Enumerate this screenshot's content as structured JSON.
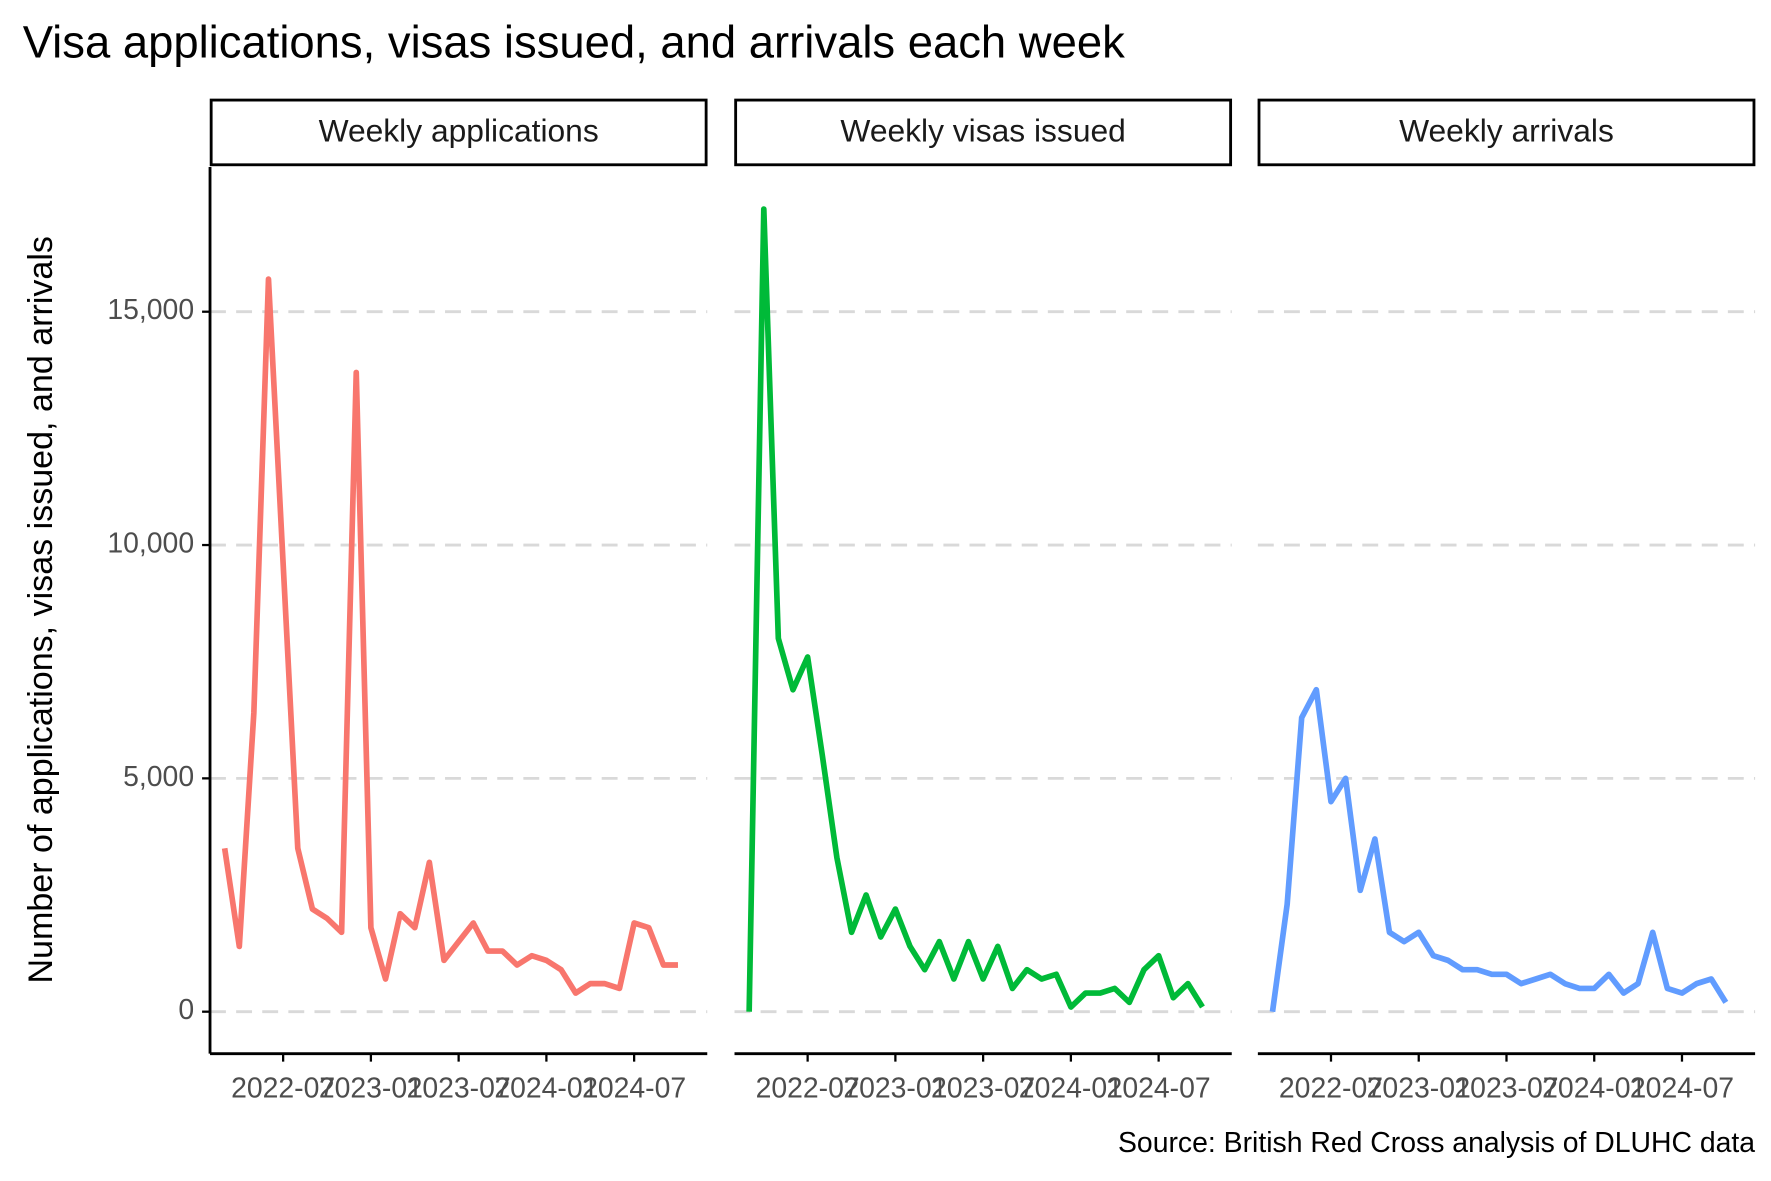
{
  "title": "Visa applications, visas issued, and arrivals each week",
  "y_label": "Number of applications, visas issued, and arrivals",
  "caption": "Source: British Red Cross analysis of DLUHC data",
  "chart_data": [
    {
      "type": "line",
      "x": [
        "2022-03",
        "2022-04",
        "2022-05",
        "2022-06",
        "2022-07",
        "2022-08",
        "2022-09",
        "2022-10",
        "2022-11",
        "2022-12",
        "2023-01",
        "2023-02",
        "2023-03",
        "2023-04",
        "2023-05",
        "2023-06",
        "2023-07",
        "2023-08",
        "2023-09",
        "2023-10",
        "2023-11",
        "2023-12",
        "2024-01",
        "2024-02",
        "2024-03",
        "2024-04",
        "2024-05",
        "2024-06",
        "2024-07",
        "2024-08",
        "2024-09",
        "2024-10"
      ],
      "series": [
        {
          "name": "Weekly applications",
          "color": "#f8766d",
          "values": [
            3500,
            1400,
            6400,
            15700,
            9600,
            3500,
            2200,
            2000,
            1700,
            13700,
            1800,
            700,
            2100,
            1800,
            3200,
            1100,
            1500,
            1900,
            1300,
            1300,
            1000,
            1200,
            1100,
            900,
            400,
            600,
            600,
            500,
            1900,
            1800,
            1000,
            1000
          ]
        }
      ],
      "xlim": [
        "2022-02",
        "2024-12"
      ],
      "xticks": [
        "2022-07",
        "2023-01",
        "2023-07",
        "2024-01",
        "2024-07"
      ],
      "ylim": [
        -900,
        18100
      ],
      "yticks": [
        0,
        {
          "value": 5000,
          "label": "5,000"
        },
        {
          "value": 10000,
          "label": "10,000"
        },
        {
          "value": 15000,
          "label": "15,000"
        }
      ],
      "grid": true
    },
    {
      "type": "line",
      "x": [
        "2022-03",
        "2022-04",
        "2022-05",
        "2022-06",
        "2022-07",
        "2022-08",
        "2022-09",
        "2022-10",
        "2022-11",
        "2022-12",
        "2023-01",
        "2023-02",
        "2023-03",
        "2023-04",
        "2023-05",
        "2023-06",
        "2023-07",
        "2023-08",
        "2023-09",
        "2023-10",
        "2023-11",
        "2023-12",
        "2024-01",
        "2024-02",
        "2024-03",
        "2024-04",
        "2024-05",
        "2024-06",
        "2024-07",
        "2024-08",
        "2024-09",
        "2024-10"
      ],
      "series": [
        {
          "name": "Weekly visas issued",
          "color": "#00ba38",
          "values": [
            0,
            17200,
            8000,
            6900,
            7600,
            5500,
            3300,
            1700,
            2500,
            1600,
            2200,
            1400,
            900,
            1500,
            700,
            1500,
            700,
            1400,
            500,
            900,
            700,
            800,
            100,
            400,
            400,
            500,
            200,
            900,
            1200,
            300,
            600,
            100
          ]
        }
      ],
      "xlim": [
        "2022-02",
        "2024-12"
      ],
      "xticks": [
        "2022-07",
        "2023-01",
        "2023-07",
        "2024-01",
        "2024-07"
      ]
    },
    {
      "type": "line",
      "x": [
        "2022-03",
        "2022-04",
        "2022-05",
        "2022-06",
        "2022-07",
        "2022-08",
        "2022-09",
        "2022-10",
        "2022-11",
        "2022-12",
        "2023-01",
        "2023-02",
        "2023-03",
        "2023-04",
        "2023-05",
        "2023-06",
        "2023-07",
        "2023-08",
        "2023-09",
        "2023-10",
        "2023-11",
        "2023-12",
        "2024-01",
        "2024-02",
        "2024-03",
        "2024-04",
        "2024-05",
        "2024-06",
        "2024-07",
        "2024-08",
        "2024-09",
        "2024-10"
      ],
      "series": [
        {
          "name": "Weekly arrivals",
          "color": "#619cff",
          "values": [
            0,
            2300,
            6300,
            6900,
            4500,
            5000,
            2600,
            3700,
            1700,
            1500,
            1700,
            1200,
            1100,
            900,
            900,
            800,
            800,
            600,
            700,
            800,
            600,
            500,
            500,
            800,
            400,
            600,
            1700,
            500,
            400,
            600,
            700,
            200
          ]
        }
      ],
      "xlim": [
        "2022-02",
        "2024-12"
      ],
      "xticks": [
        "2022-07",
        "2023-01",
        "2023-07",
        "2024-01",
        "2024-07"
      ]
    }
  ]
}
